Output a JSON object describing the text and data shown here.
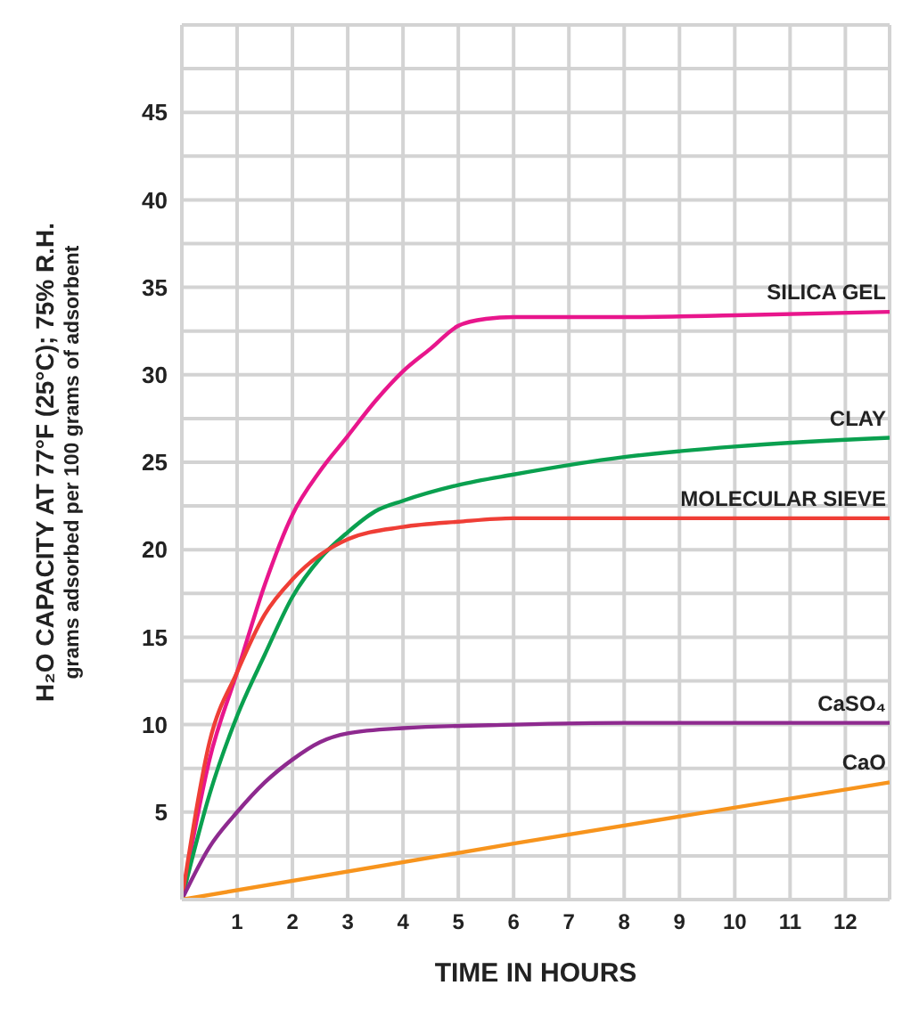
{
  "chart_data": {
    "type": "line",
    "xlabel": "TIME IN HOURS",
    "ylabel": "H₂O CAPACITY AT 77°F (25°C); 75% R.H.\ngrams adsorbed per 100 grams of adsorbent",
    "xlim": [
      0,
      12.8
    ],
    "xticks": [
      {
        "value": 0,
        "label": null
      },
      1,
      2,
      3,
      4,
      5,
      6,
      7,
      8,
      9,
      10,
      11,
      12
    ],
    "ylim": [
      0,
      50
    ],
    "yticks": [
      {
        "value": 0,
        "label": null
      },
      {
        "value": 2.5,
        "label": null
      },
      5,
      {
        "value": 7.5,
        "label": null
      },
      10,
      {
        "value": 12.5,
        "label": null
      },
      15,
      {
        "value": 17.5,
        "label": null
      },
      20,
      {
        "value": 22.5,
        "label": null
      },
      25,
      {
        "value": 27.5,
        "label": null
      },
      30,
      {
        "value": 32.5,
        "label": null
      },
      35,
      {
        "value": 37.5,
        "label": null
      },
      40,
      {
        "value": 42.5,
        "label": null
      },
      45,
      {
        "value": 47.5,
        "label": null
      },
      {
        "value": 50,
        "label": null
      }
    ],
    "grid": true,
    "legend": false,
    "marker": "none",
    "line_style": "solid",
    "series": [
      {
        "name": "SILICA GEL",
        "color": "#e8168c",
        "x": [
          0,
          0.5,
          1,
          1.5,
          2,
          2.5,
          3,
          3.5,
          4,
          4.5,
          5,
          5.5,
          6,
          8,
          10,
          12.8
        ],
        "values": [
          0,
          8,
          13,
          18,
          22,
          24.5,
          26.5,
          28.5,
          30.2,
          31.5,
          32.8,
          33.2,
          33.3,
          33.3,
          33.4,
          33.6
        ]
      },
      {
        "name": "CLAY",
        "color": "#0aa04f",
        "x": [
          0,
          0.5,
          1,
          1.5,
          2,
          2.5,
          3,
          3.5,
          4,
          5,
          6,
          8,
          10,
          12.8
        ],
        "values": [
          0,
          6,
          10.5,
          14,
          17.3,
          19.5,
          21,
          22.2,
          22.8,
          23.7,
          24.3,
          25.3,
          25.9,
          26.4
        ]
      },
      {
        "name": "MOLECULAR SIEVE",
        "color": "#ef3e36",
        "x": [
          0,
          0.5,
          1,
          1.5,
          2,
          2.5,
          3,
          4,
          5,
          6,
          8,
          12.8
        ],
        "values": [
          0,
          9,
          13,
          16.3,
          18.3,
          19.7,
          20.6,
          21.3,
          21.6,
          21.8,
          21.8,
          21.8
        ]
      },
      {
        "name": "CaSO₄",
        "color": "#8e2a8f",
        "x": [
          0,
          0.5,
          1,
          1.5,
          2,
          2.5,
          3,
          4,
          6,
          8,
          12.8
        ],
        "values": [
          0,
          3,
          5,
          6.7,
          8,
          9,
          9.5,
          9.8,
          10,
          10.1,
          10.1
        ]
      },
      {
        "name": "CaO",
        "color": "#f7941d",
        "x": [
          0,
          6,
          12.8
        ],
        "values": [
          0,
          3.2,
          6.7
        ]
      }
    ]
  }
}
